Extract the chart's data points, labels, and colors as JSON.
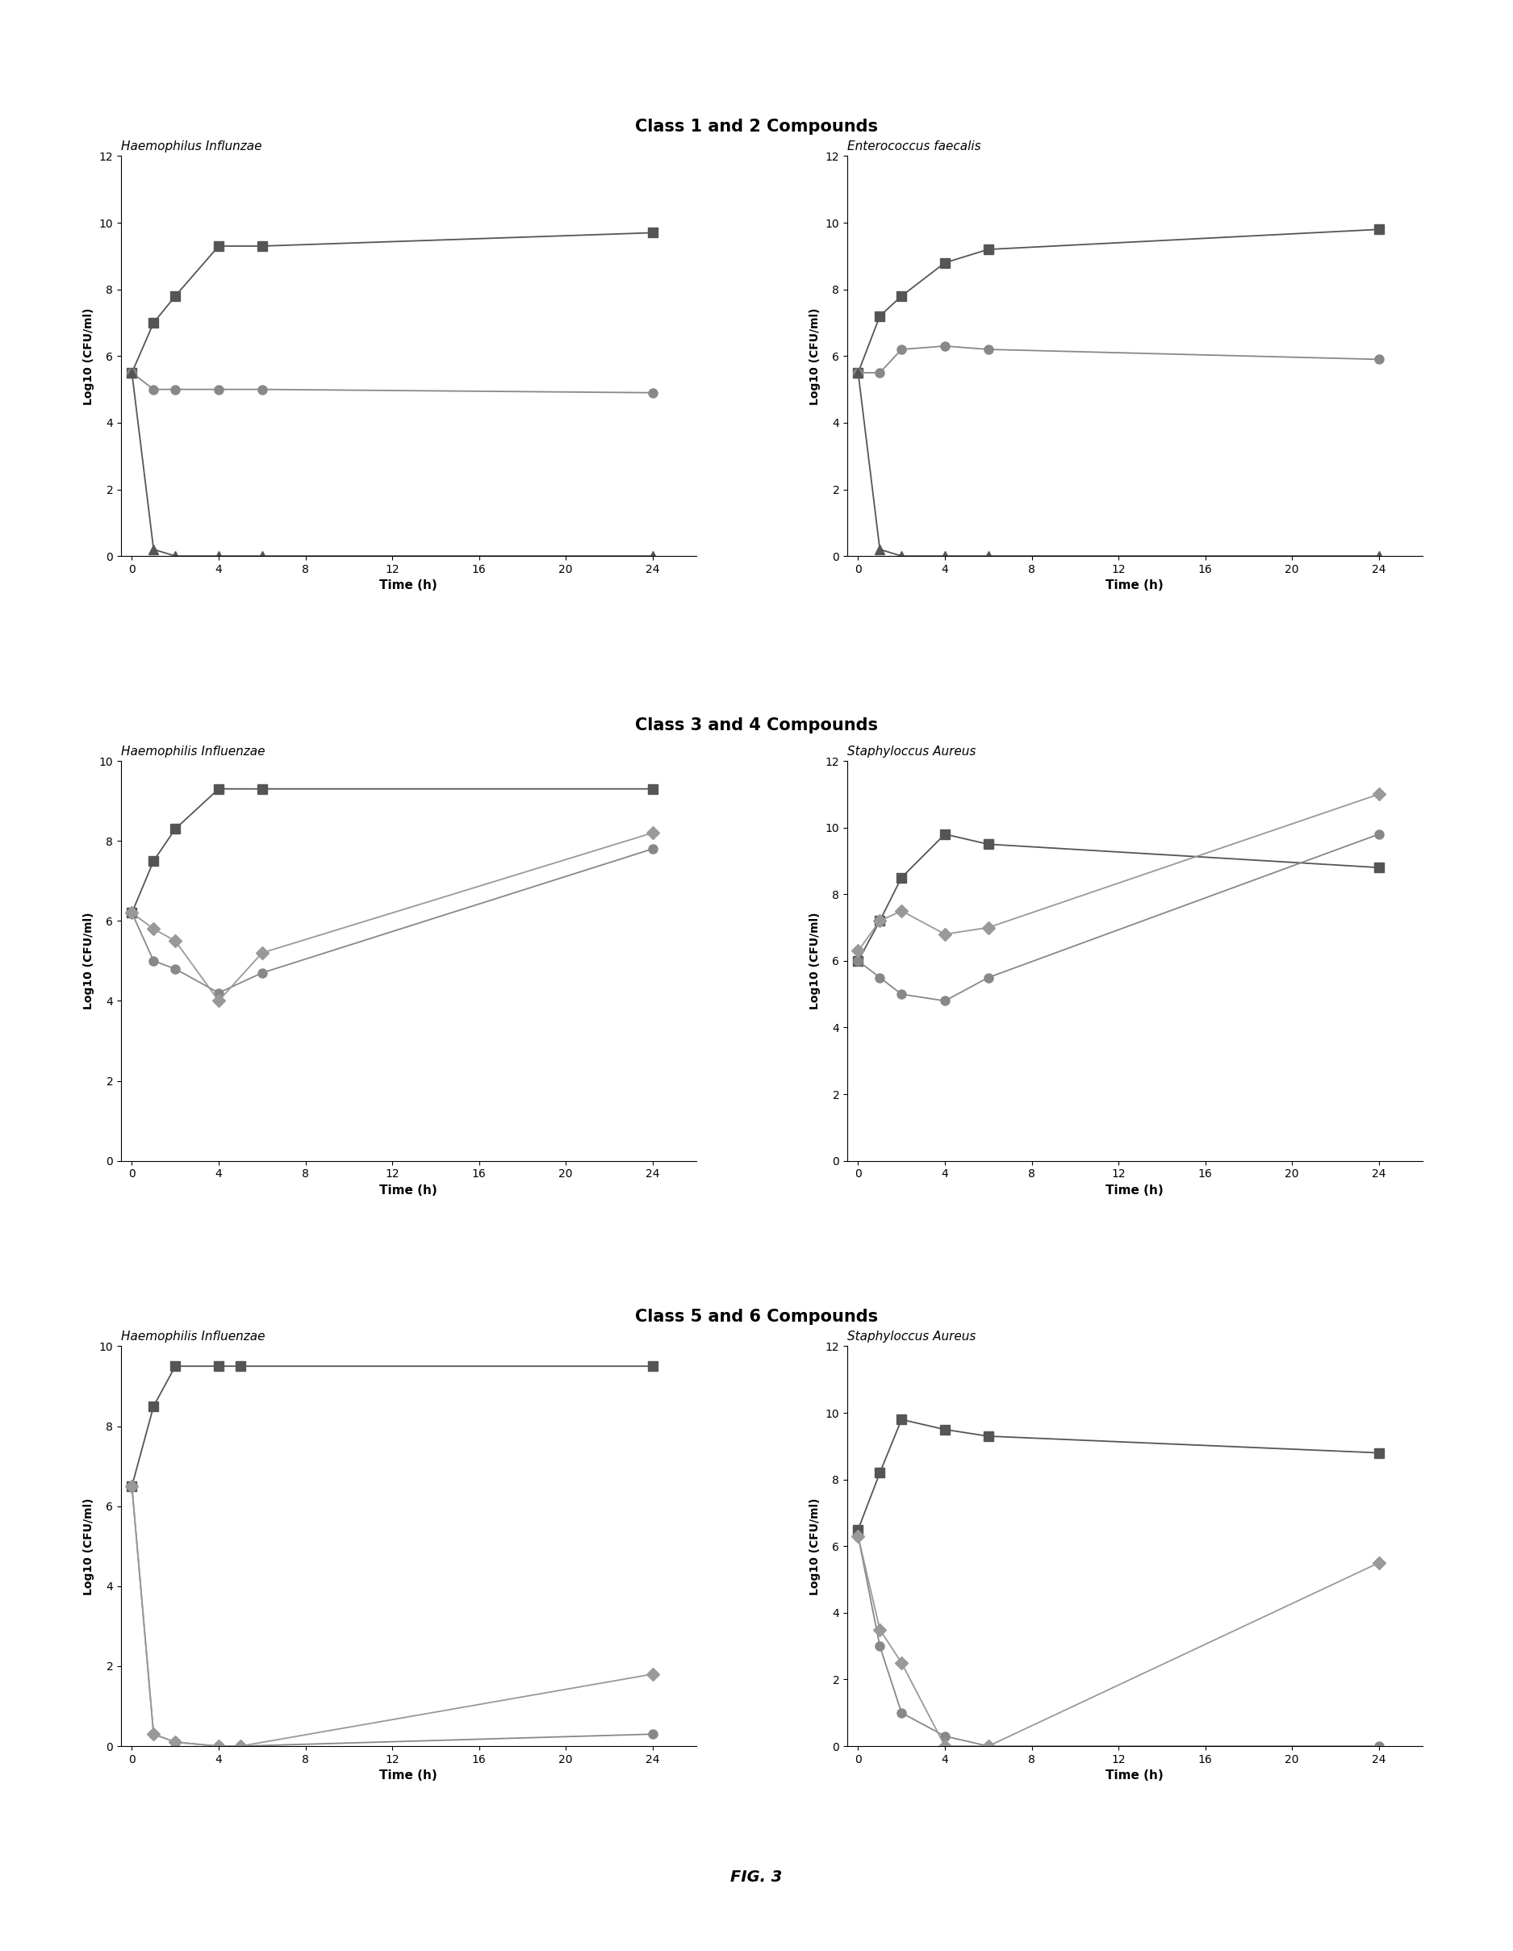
{
  "section_titles": [
    "Class 1 and 2 Compounds",
    "Class 3 and 4 Compounds",
    "Class 5 and 6 Compounds"
  ],
  "section_title_fontsize": 15,
  "subplot_titles": [
    [
      "Haemophilus Influnzae",
      "Enterococcus faecalis"
    ],
    [
      "Haemophilis Influenzae",
      "Staphyloccus Aureus"
    ],
    [
      "Haemophilis Influenzae",
      "Staphyloccus Aureus"
    ]
  ],
  "ylabel": "Log10 (CFU/ml)",
  "xlabel": "Time (h)",
  "panel_1_1": {
    "time": [
      0,
      1,
      2,
      4,
      6,
      24
    ],
    "square_series": [
      5.5,
      7.0,
      7.8,
      9.3,
      9.3,
      9.7
    ],
    "circle_series": [
      5.5,
      5.0,
      5.0,
      5.0,
      5.0,
      4.9
    ],
    "triangle_series": [
      5.5,
      0.2,
      0.0,
      0.0,
      0.0,
      0.0
    ],
    "ylim": [
      0,
      12
    ],
    "yticks": [
      0,
      2,
      4,
      6,
      8,
      10,
      12
    ],
    "xticks": [
      0,
      4,
      8,
      12,
      16,
      20,
      24
    ]
  },
  "panel_1_2": {
    "time": [
      0,
      1,
      2,
      4,
      6,
      24
    ],
    "square_series": [
      5.5,
      7.2,
      7.8,
      8.8,
      9.2,
      9.8
    ],
    "circle_series": [
      5.5,
      5.5,
      6.2,
      6.3,
      6.2,
      5.9
    ],
    "triangle_series": [
      5.5,
      0.2,
      0.0,
      0.0,
      0.0,
      0.0
    ],
    "ylim": [
      0,
      12
    ],
    "yticks": [
      0,
      2,
      4,
      6,
      8,
      10,
      12
    ],
    "xticks": [
      0,
      4,
      8,
      12,
      16,
      20,
      24
    ]
  },
  "panel_2_1": {
    "time": [
      0,
      1,
      2,
      4,
      6,
      24
    ],
    "square_series": [
      6.2,
      7.5,
      8.3,
      9.3,
      9.3,
      9.3
    ],
    "circle_series": [
      6.2,
      5.0,
      4.8,
      4.2,
      4.7,
      7.8
    ],
    "diamond_series": [
      6.2,
      5.8,
      5.5,
      4.0,
      5.2,
      8.2
    ],
    "ylim": [
      0,
      10
    ],
    "yticks": [
      0,
      2,
      4,
      6,
      8,
      10
    ],
    "xticks": [
      0,
      4,
      8,
      12,
      16,
      20,
      24
    ]
  },
  "panel_2_2": {
    "time": [
      0,
      1,
      2,
      4,
      6,
      24
    ],
    "square_series": [
      6.0,
      7.2,
      8.5,
      9.8,
      9.5,
      8.8
    ],
    "circle_series": [
      6.0,
      5.5,
      5.0,
      4.8,
      5.5,
      9.8
    ],
    "diamond_series": [
      6.3,
      7.2,
      7.5,
      6.8,
      7.0,
      11.0
    ],
    "ylim": [
      0,
      12
    ],
    "yticks": [
      0,
      2,
      4,
      6,
      8,
      10,
      12
    ],
    "xticks": [
      0,
      4,
      8,
      12,
      16,
      20,
      24
    ]
  },
  "panel_3_1": {
    "time": [
      0,
      1,
      2,
      4,
      5,
      24
    ],
    "square_series": [
      6.5,
      8.5,
      9.5,
      9.5,
      9.5,
      9.5
    ],
    "circle_series": [
      6.5,
      0.3,
      0.1,
      0.0,
      0.0,
      0.3
    ],
    "diamond_series": [
      6.5,
      0.3,
      0.1,
      0.0,
      0.0,
      1.8
    ],
    "ylim": [
      0,
      10
    ],
    "yticks": [
      0,
      2,
      4,
      6,
      8,
      10
    ],
    "xticks": [
      0,
      4,
      8,
      12,
      16,
      20,
      24
    ]
  },
  "panel_3_2": {
    "time": [
      0,
      1,
      2,
      4,
      6,
      24
    ],
    "square_series": [
      6.5,
      8.2,
      9.8,
      9.5,
      9.3,
      8.8
    ],
    "circle_series": [
      6.3,
      3.0,
      1.0,
      0.3,
      0.0,
      0.0
    ],
    "diamond_series": [
      6.3,
      3.5,
      2.5,
      0.0,
      0.0,
      5.5
    ],
    "ylim": [
      0,
      12
    ],
    "yticks": [
      0,
      2,
      4,
      6,
      8,
      10,
      12
    ],
    "xticks": [
      0,
      4,
      8,
      12,
      16,
      20,
      24
    ]
  },
  "fig3_label": "FIG. 3",
  "color_square": "#555555",
  "color_circle": "#888888",
  "color_triangle": "#555555",
  "color_diamond": "#999999",
  "marker_square": "s",
  "marker_circle": "o",
  "marker_triangle": "^",
  "marker_diamond": "D"
}
